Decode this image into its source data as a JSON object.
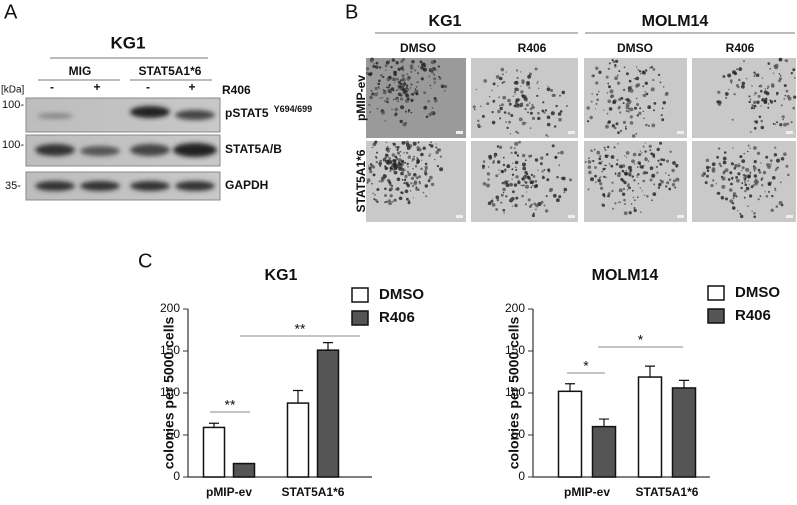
{
  "panel_a": {
    "label": "A",
    "title": "KG1",
    "unit": "[kDa]",
    "groups": [
      "MIG",
      "STAT5A1*6"
    ],
    "treatment": "R406",
    "signs": [
      "-",
      "+",
      "-",
      "+"
    ],
    "markers": [
      "100-",
      "100-",
      "35-"
    ],
    "blots": [
      {
        "name": "pSTAT5",
        "sup": "Y694/699"
      },
      {
        "name": "STAT5A/B"
      },
      {
        "name": "GAPDH"
      }
    ]
  },
  "panel_b": {
    "label": "B",
    "cell_lines": [
      "KG1",
      "MOLM14"
    ],
    "treatments": [
      "DMSO",
      "R406",
      "DMSO",
      "R406"
    ],
    "rows": [
      "pMIP-ev",
      "STAT5A1*6"
    ]
  },
  "panel_c_label": "C",
  "chart_data": [
    {
      "type": "bar",
      "title": "KG1",
      "y_label": "colonies per 5000 cells",
      "categories": [
        "pMIP-ev",
        "STAT5A1*6"
      ],
      "series": [
        {
          "name": "DMSO",
          "color": "#ffffff",
          "values": [
            59,
            88
          ],
          "errors": [
            5,
            15
          ]
        },
        {
          "name": "R406",
          "color": "#555555",
          "values": [
            16,
            151
          ],
          "errors": [
            0,
            9
          ]
        }
      ],
      "ylim": [
        0,
        200
      ],
      "yticks": [
        0,
        50,
        100,
        150,
        200
      ],
      "annotations": [
        "**",
        "**"
      ]
    },
    {
      "type": "bar",
      "title": "MOLM14",
      "y_label": "colonies per 5000 cells",
      "categories": [
        "pMIP-ev",
        "STAT5A1*6"
      ],
      "series": [
        {
          "name": "DMSO",
          "color": "#ffffff",
          "values": [
            102,
            119
          ],
          "errors": [
            9,
            13
          ]
        },
        {
          "name": "R406",
          "color": "#555555",
          "values": [
            60,
            106
          ],
          "errors": [
            9,
            9
          ]
        }
      ],
      "ylim": [
        0,
        200
      ],
      "yticks": [
        0,
        50,
        100,
        150,
        200
      ],
      "annotations": [
        "*",
        "*"
      ]
    }
  ]
}
